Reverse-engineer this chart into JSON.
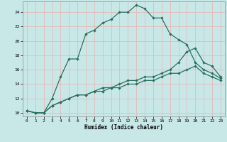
{
  "title": "",
  "xlabel": "Humidex (Indice chaleur)",
  "background_color": "#c8e8e8",
  "grid_color": "#e8b8b8",
  "line_color": "#2a7060",
  "x_ticks": [
    0,
    1,
    2,
    3,
    4,
    5,
    6,
    7,
    8,
    9,
    10,
    11,
    12,
    13,
    14,
    15,
    16,
    17,
    18,
    19,
    20,
    21,
    22,
    23
  ],
  "y_ticks": [
    10,
    12,
    14,
    16,
    18,
    20,
    22,
    24
  ],
  "ylim": [
    9.5,
    25.5
  ],
  "xlim": [
    -0.5,
    23.5
  ],
  "line1": {
    "x": [
      0,
      1,
      2,
      3,
      4,
      5,
      6,
      7,
      8,
      9,
      10,
      11,
      12,
      13,
      14,
      15,
      16,
      17,
      18,
      19,
      20,
      21,
      22,
      23
    ],
    "y": [
      10.3,
      10.0,
      10.0,
      12.0,
      15.0,
      17.5,
      17.5,
      21.0,
      21.5,
      22.5,
      23.0,
      24.0,
      24.0,
      25.0,
      24.5,
      23.2,
      23.2,
      21.0,
      20.2,
      19.5,
      17.0,
      16.0,
      15.5,
      14.8
    ]
  },
  "line2": {
    "x": [
      0,
      1,
      2,
      3,
      4,
      5,
      6,
      7,
      8,
      9,
      10,
      11,
      12,
      13,
      14,
      15,
      16,
      17,
      18,
      19,
      20,
      21,
      22,
      23
    ],
    "y": [
      10.3,
      10.0,
      10.0,
      11.0,
      11.5,
      12.0,
      12.5,
      12.5,
      13.0,
      13.5,
      13.5,
      13.5,
      14.0,
      14.0,
      14.5,
      14.5,
      15.0,
      15.5,
      15.5,
      16.0,
      16.5,
      15.5,
      15.0,
      14.5
    ]
  },
  "line3": {
    "x": [
      0,
      1,
      2,
      3,
      4,
      5,
      6,
      7,
      8,
      9,
      10,
      11,
      12,
      13,
      14,
      15,
      16,
      17,
      18,
      19,
      20,
      21,
      22,
      23
    ],
    "y": [
      10.3,
      10.0,
      10.0,
      11.0,
      11.5,
      12.0,
      12.5,
      12.5,
      13.0,
      13.0,
      13.5,
      14.0,
      14.5,
      14.5,
      15.0,
      15.0,
      15.5,
      16.0,
      17.0,
      18.5,
      19.0,
      17.0,
      16.5,
      15.0
    ]
  }
}
